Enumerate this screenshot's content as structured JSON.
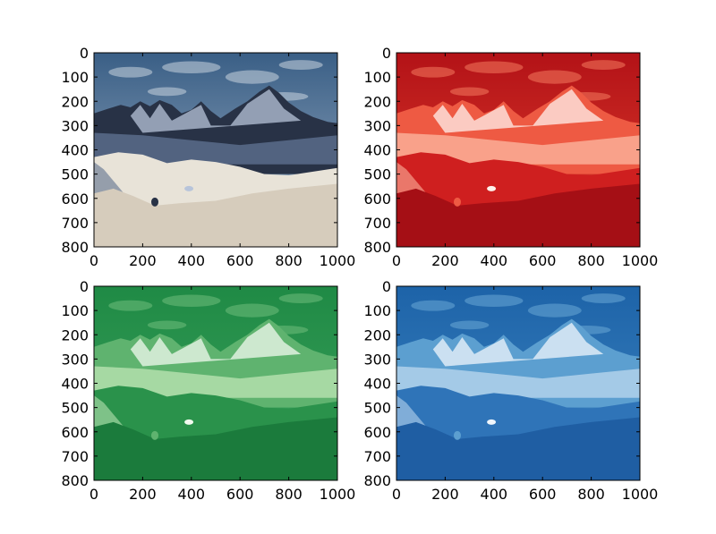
{
  "chart_data": [
    {
      "type": "image",
      "channel": "original",
      "colormap": "none",
      "xlim": [
        0,
        1000
      ],
      "ylim": [
        800,
        0
      ],
      "xticks": [
        "0",
        "200",
        "400",
        "600",
        "800",
        "1000"
      ],
      "yticks": [
        "0",
        "100",
        "200",
        "300",
        "400",
        "500",
        "600",
        "700",
        "800"
      ],
      "palette": {
        "sky_top": "#3a5f86",
        "sky": "#9fb1c6",
        "cloud": "#c9d3df",
        "mountain_dark": "#283246",
        "mountain_mid": "#5d6f8e",
        "mountain_light": "#b7c4da",
        "snow": "#e8e3d8",
        "snow_warm": "#d6ccbc"
      }
    },
    {
      "type": "image",
      "channel": "red",
      "colormap": "Reds",
      "xlim": [
        0,
        1000
      ],
      "ylim": [
        800,
        0
      ],
      "xticks": [
        "0",
        "200",
        "400",
        "600",
        "800",
        "1000"
      ],
      "yticks": [
        "0",
        "100",
        "200",
        "300",
        "400",
        "500",
        "600",
        "700",
        "800"
      ],
      "palette": {
        "sky_top": "#b31217",
        "sky": "#e0402e",
        "cloud": "#f47a5e",
        "mountain_dark": "#ee5a43",
        "mountain_mid": "#fbb39c",
        "mountain_light": "#fff2ec",
        "snow": "#cf1f1f",
        "snow_warm": "#a50f15"
      }
    },
    {
      "type": "image",
      "channel": "green",
      "colormap": "Greens",
      "xlim": [
        0,
        1000
      ],
      "ylim": [
        800,
        0
      ],
      "xticks": [
        "0",
        "200",
        "400",
        "600",
        "800",
        "1000"
      ],
      "yticks": [
        "0",
        "100",
        "200",
        "300",
        "400",
        "500",
        "600",
        "700",
        "800"
      ],
      "palette": {
        "sky_top": "#1f8a45",
        "sky": "#3da25d",
        "cloud": "#70bd7c",
        "mountain_dark": "#5fb36f",
        "mountain_mid": "#b8e2b0",
        "mountain_light": "#f2faef",
        "snow": "#2a924b",
        "snow_warm": "#1b7b3c"
      }
    },
    {
      "type": "image",
      "channel": "blue",
      "colormap": "Blues",
      "xlim": [
        0,
        1000
      ],
      "ylim": [
        800,
        0
      ],
      "xticks": [
        "0",
        "200",
        "400",
        "600",
        "800",
        "1000"
      ],
      "yticks": [
        "0",
        "100",
        "200",
        "300",
        "400",
        "500",
        "600",
        "700",
        "800"
      ],
      "palette": {
        "sky_top": "#1d63a8",
        "sky": "#3f86c2",
        "cloud": "#6aa8d6",
        "mountain_dark": "#5c9fd0",
        "mountain_mid": "#b7d4ec",
        "mountain_light": "#f0f6fc",
        "snow": "#2f74b8",
        "snow_warm": "#1f5ea3"
      }
    }
  ]
}
